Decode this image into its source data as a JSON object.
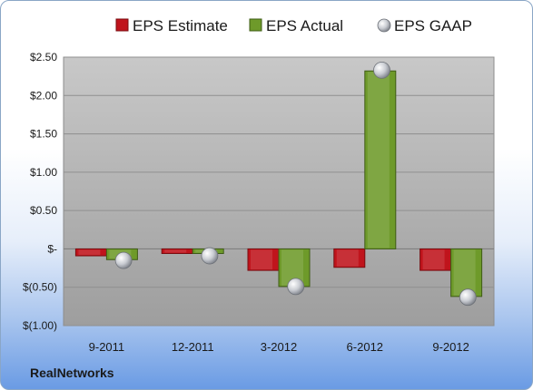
{
  "company": "RealNetworks",
  "chart_data": {
    "type": "bar",
    "categories": [
      "9-2011",
      "12-2011",
      "3-2012",
      "6-2012",
      "9-2012"
    ],
    "series": [
      {
        "name": "EPS Estimate",
        "kind": "bar",
        "color": "#c0141c",
        "values": [
          -0.09,
          -0.06,
          -0.28,
          -0.24,
          -0.28
        ]
      },
      {
        "name": "EPS Actual",
        "kind": "bar",
        "color": "#6e9a2a",
        "values": [
          -0.14,
          -0.06,
          -0.49,
          2.32,
          -0.62
        ]
      },
      {
        "name": "EPS GAAP",
        "kind": "marker",
        "color": "#b8bcc2",
        "values": [
          -0.15,
          -0.09,
          -0.49,
          2.33,
          -0.63
        ]
      }
    ],
    "ylim": [
      -1.0,
      2.5
    ],
    "yticks": [
      2.5,
      2.0,
      1.5,
      1.0,
      0.5,
      0,
      -0.5,
      -1.0
    ],
    "ytick_labels": [
      "$2.50",
      "$2.00",
      "$1.50",
      "$1.00",
      "$0.50",
      "$-",
      "$(0.50)",
      "$(1.00)"
    ],
    "grid": true,
    "legend_position": "top"
  }
}
